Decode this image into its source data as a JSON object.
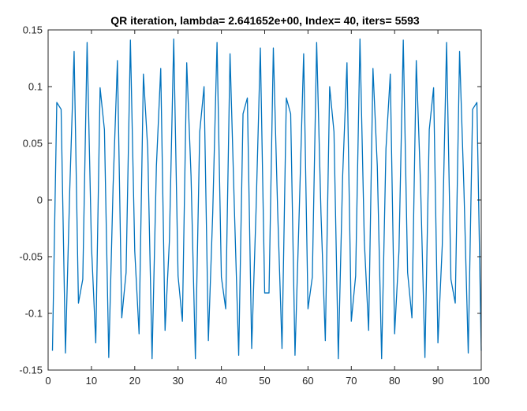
{
  "chart_data": {
    "type": "line",
    "title": "QR iteration, lambda= 2.641652e+00, Index= 40, iters= 5593",
    "xlabel": "",
    "ylabel": "",
    "xlim": [
      0,
      100
    ],
    "ylim": [
      -0.15,
      0.15
    ],
    "xticks": [
      0,
      10,
      20,
      30,
      40,
      50,
      60,
      70,
      80,
      90,
      100
    ],
    "yticks": [
      -0.15,
      -0.1,
      -0.05,
      0,
      0.05,
      0.1,
      0.15
    ],
    "xtick_labels": [
      "0",
      "10",
      "20",
      "30",
      "40",
      "50",
      "60",
      "70",
      "80",
      "90",
      "100"
    ],
    "ytick_labels": [
      "-0.15",
      "-0.1",
      "-0.05",
      "0",
      "0.05",
      "0.1",
      "0.15"
    ],
    "grid": false,
    "series": [
      {
        "color": "#0072BD",
        "x": [
          1,
          2,
          3,
          4,
          5,
          6,
          7,
          8,
          9,
          10,
          11,
          12,
          13,
          14,
          15,
          16,
          17,
          18,
          19,
          20,
          21,
          22,
          23,
          24,
          25,
          26,
          27,
          28,
          29,
          30,
          31,
          32,
          33,
          34,
          35,
          36,
          37,
          38,
          39,
          40,
          41,
          42,
          43,
          44,
          45,
          46,
          47,
          48,
          49,
          50,
          51,
          52,
          53,
          54,
          55,
          56,
          57,
          58,
          59,
          60,
          61,
          62,
          63,
          64,
          65,
          66,
          67,
          68,
          69,
          70,
          71,
          72,
          73,
          74,
          75,
          76,
          77,
          78,
          79,
          80,
          81,
          82,
          83,
          84,
          85,
          86,
          87,
          88,
          89,
          90,
          91,
          92,
          93,
          94,
          95,
          96,
          97,
          98,
          99,
          100
        ],
        "y": [
          -0.133,
          0.086,
          0.08,
          -0.135,
          0.01,
          0.131,
          -0.091,
          -0.07,
          0.139,
          -0.04,
          -0.126,
          0.099,
          0.062,
          -0.139,
          0.012,
          0.123,
          -0.104,
          -0.064,
          0.141,
          -0.045,
          -0.118,
          0.111,
          0.045,
          -0.14,
          0.03,
          0.116,
          -0.115,
          -0.036,
          0.142,
          -0.067,
          -0.107,
          0.121,
          0.021,
          -0.14,
          0.06,
          0.1,
          -0.124,
          -0.012,
          0.139,
          -0.068,
          -0.096,
          0.129,
          -0.007,
          -0.137,
          0.076,
          0.09,
          -0.131,
          -0.01,
          0.134,
          -0.082,
          -0.082,
          0.134,
          -0.01,
          -0.131,
          0.09,
          0.076,
          -0.137,
          -0.007,
          0.129,
          -0.096,
          -0.068,
          0.139,
          -0.012,
          -0.124,
          0.1,
          0.06,
          -0.14,
          0.021,
          0.121,
          -0.107,
          -0.067,
          0.142,
          -0.036,
          -0.115,
          0.116,
          0.03,
          -0.14,
          0.045,
          0.111,
          -0.118,
          -0.045,
          0.141,
          -0.064,
          -0.104,
          0.123,
          0.012,
          -0.139,
          0.062,
          0.099,
          -0.126,
          -0.04,
          0.139,
          -0.07,
          -0.091,
          0.131,
          0.01,
          -0.135,
          0.08,
          0.086,
          -0.133
        ]
      }
    ]
  }
}
